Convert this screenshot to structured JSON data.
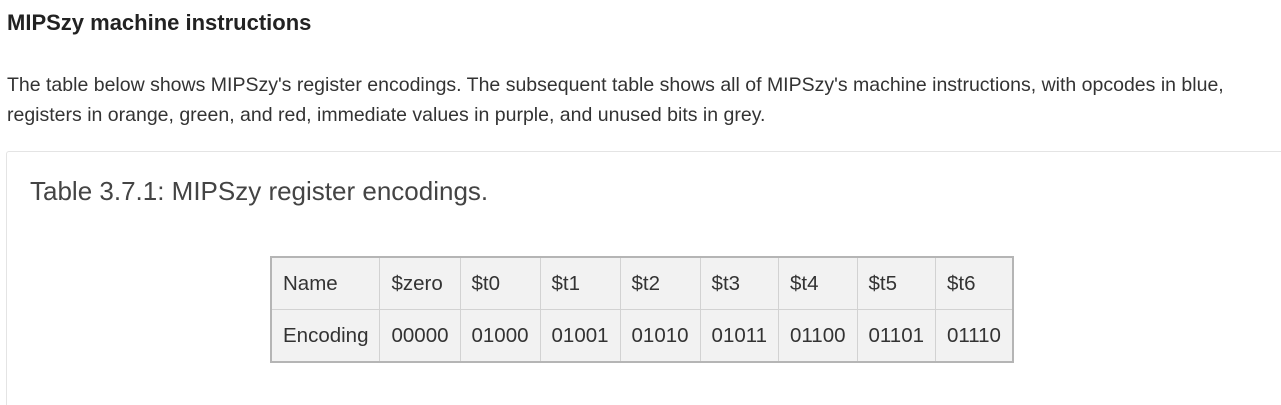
{
  "heading": "MIPSzy machine instructions",
  "intro": "The table below shows MIPSzy's register encodings. The subsequent table shows all of MIPSzy's machine instructions, with opcodes in blue, registers in orange, green, and red, immediate values in purple, and unused bits in grey.",
  "table": {
    "caption": "Table 3.7.1: MIPSzy register encodings.",
    "rows": [
      {
        "label": "Name",
        "cells": [
          "$zero",
          "$t0",
          "$t1",
          "$t2",
          "$t3",
          "$t4",
          "$t5",
          "$t6"
        ]
      },
      {
        "label": "Encoding",
        "cells": [
          "00000",
          "01000",
          "01001",
          "01010",
          "01011",
          "01100",
          "01101",
          "01110"
        ]
      }
    ]
  }
}
